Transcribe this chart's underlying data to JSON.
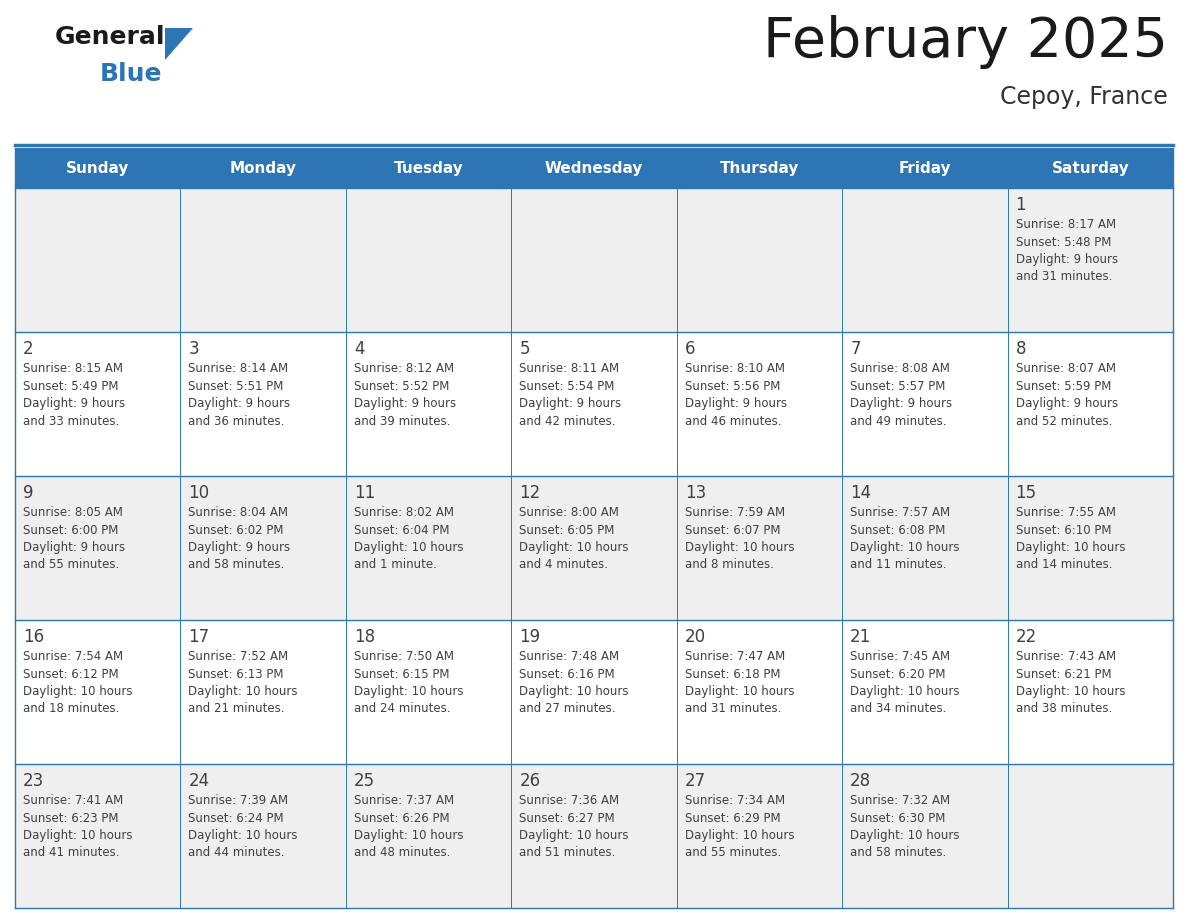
{
  "title": "February 2025",
  "subtitle": "Cepoy, France",
  "days_of_week": [
    "Sunday",
    "Monday",
    "Tuesday",
    "Wednesday",
    "Thursday",
    "Friday",
    "Saturday"
  ],
  "header_bg": "#2E75B6",
  "header_text_color": "#FFFFFF",
  "cell_bg_light": "#EFEFEF",
  "cell_bg_white": "#FFFFFF",
  "cell_border_color": "#2E75B6",
  "day_number_color": "#404040",
  "info_text_color": "#404040",
  "title_color": "#1a1a1a",
  "subtitle_color": "#333333",
  "logo_general_color": "#1a1a1a",
  "logo_blue_color": "#2E75B6",
  "weeks": [
    {
      "bg": "light",
      "days": [
        {
          "date": null,
          "info": null
        },
        {
          "date": null,
          "info": null
        },
        {
          "date": null,
          "info": null
        },
        {
          "date": null,
          "info": null
        },
        {
          "date": null,
          "info": null
        },
        {
          "date": null,
          "info": null
        },
        {
          "date": 1,
          "info": "Sunrise: 8:17 AM\nSunset: 5:48 PM\nDaylight: 9 hours\nand 31 minutes."
        }
      ]
    },
    {
      "bg": "white",
      "days": [
        {
          "date": 2,
          "info": "Sunrise: 8:15 AM\nSunset: 5:49 PM\nDaylight: 9 hours\nand 33 minutes."
        },
        {
          "date": 3,
          "info": "Sunrise: 8:14 AM\nSunset: 5:51 PM\nDaylight: 9 hours\nand 36 minutes."
        },
        {
          "date": 4,
          "info": "Sunrise: 8:12 AM\nSunset: 5:52 PM\nDaylight: 9 hours\nand 39 minutes."
        },
        {
          "date": 5,
          "info": "Sunrise: 8:11 AM\nSunset: 5:54 PM\nDaylight: 9 hours\nand 42 minutes."
        },
        {
          "date": 6,
          "info": "Sunrise: 8:10 AM\nSunset: 5:56 PM\nDaylight: 9 hours\nand 46 minutes."
        },
        {
          "date": 7,
          "info": "Sunrise: 8:08 AM\nSunset: 5:57 PM\nDaylight: 9 hours\nand 49 minutes."
        },
        {
          "date": 8,
          "info": "Sunrise: 8:07 AM\nSunset: 5:59 PM\nDaylight: 9 hours\nand 52 minutes."
        }
      ]
    },
    {
      "bg": "light",
      "days": [
        {
          "date": 9,
          "info": "Sunrise: 8:05 AM\nSunset: 6:00 PM\nDaylight: 9 hours\nand 55 minutes."
        },
        {
          "date": 10,
          "info": "Sunrise: 8:04 AM\nSunset: 6:02 PM\nDaylight: 9 hours\nand 58 minutes."
        },
        {
          "date": 11,
          "info": "Sunrise: 8:02 AM\nSunset: 6:04 PM\nDaylight: 10 hours\nand 1 minute."
        },
        {
          "date": 12,
          "info": "Sunrise: 8:00 AM\nSunset: 6:05 PM\nDaylight: 10 hours\nand 4 minutes."
        },
        {
          "date": 13,
          "info": "Sunrise: 7:59 AM\nSunset: 6:07 PM\nDaylight: 10 hours\nand 8 minutes."
        },
        {
          "date": 14,
          "info": "Sunrise: 7:57 AM\nSunset: 6:08 PM\nDaylight: 10 hours\nand 11 minutes."
        },
        {
          "date": 15,
          "info": "Sunrise: 7:55 AM\nSunset: 6:10 PM\nDaylight: 10 hours\nand 14 minutes."
        }
      ]
    },
    {
      "bg": "white",
      "days": [
        {
          "date": 16,
          "info": "Sunrise: 7:54 AM\nSunset: 6:12 PM\nDaylight: 10 hours\nand 18 minutes."
        },
        {
          "date": 17,
          "info": "Sunrise: 7:52 AM\nSunset: 6:13 PM\nDaylight: 10 hours\nand 21 minutes."
        },
        {
          "date": 18,
          "info": "Sunrise: 7:50 AM\nSunset: 6:15 PM\nDaylight: 10 hours\nand 24 minutes."
        },
        {
          "date": 19,
          "info": "Sunrise: 7:48 AM\nSunset: 6:16 PM\nDaylight: 10 hours\nand 27 minutes."
        },
        {
          "date": 20,
          "info": "Sunrise: 7:47 AM\nSunset: 6:18 PM\nDaylight: 10 hours\nand 31 minutes."
        },
        {
          "date": 21,
          "info": "Sunrise: 7:45 AM\nSunset: 6:20 PM\nDaylight: 10 hours\nand 34 minutes."
        },
        {
          "date": 22,
          "info": "Sunrise: 7:43 AM\nSunset: 6:21 PM\nDaylight: 10 hours\nand 38 minutes."
        }
      ]
    },
    {
      "bg": "light",
      "days": [
        {
          "date": 23,
          "info": "Sunrise: 7:41 AM\nSunset: 6:23 PM\nDaylight: 10 hours\nand 41 minutes."
        },
        {
          "date": 24,
          "info": "Sunrise: 7:39 AM\nSunset: 6:24 PM\nDaylight: 10 hours\nand 44 minutes."
        },
        {
          "date": 25,
          "info": "Sunrise: 7:37 AM\nSunset: 6:26 PM\nDaylight: 10 hours\nand 48 minutes."
        },
        {
          "date": 26,
          "info": "Sunrise: 7:36 AM\nSunset: 6:27 PM\nDaylight: 10 hours\nand 51 minutes."
        },
        {
          "date": 27,
          "info": "Sunrise: 7:34 AM\nSunset: 6:29 PM\nDaylight: 10 hours\nand 55 minutes."
        },
        {
          "date": 28,
          "info": "Sunrise: 7:32 AM\nSunset: 6:30 PM\nDaylight: 10 hours\nand 58 minutes."
        },
        {
          "date": null,
          "info": null
        }
      ]
    }
  ]
}
